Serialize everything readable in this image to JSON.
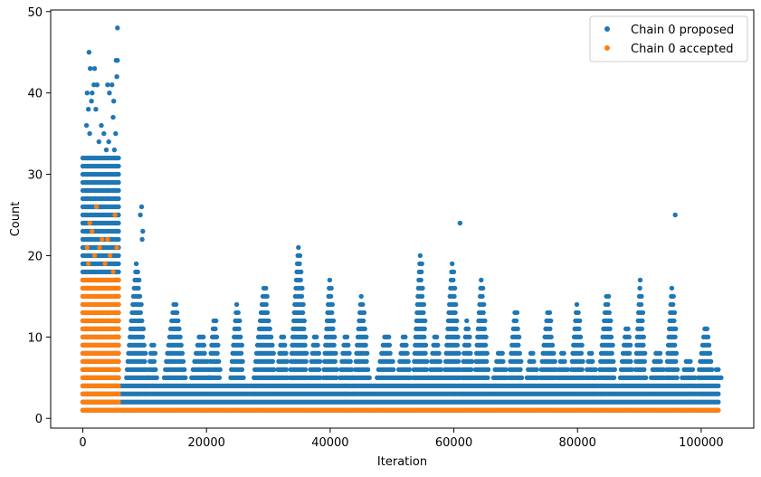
{
  "chart_data": {
    "type": "scatter",
    "xlabel": "Iteration",
    "ylabel": "Count",
    "xlim": [
      -5200,
      108500
    ],
    "ylim": [
      -1.2,
      50.2
    ],
    "xticks": [
      0,
      20000,
      40000,
      60000,
      80000,
      100000
    ],
    "xtick_labels": [
      "0",
      "20000",
      "40000",
      "60000",
      "80000",
      "100000"
    ],
    "yticks": [
      0,
      10,
      20,
      30,
      40,
      50
    ],
    "ytick_labels": [
      "0",
      "10",
      "20",
      "30",
      "40",
      "50"
    ],
    "grid": false,
    "legend_position": "top-right",
    "series": [
      {
        "name": "Chain 0 proposed",
        "color": "#1f77b4",
        "burnin": {
          "x_range": [
            0,
            6000
          ],
          "y_max": 32
        },
        "bands": [
          {
            "y": 1,
            "x_range": [
              6200,
              103000
            ]
          },
          {
            "y": 2,
            "x_range": [
              6200,
              103000
            ]
          },
          {
            "y": 3,
            "x_range": [
              6200,
              103000
            ]
          },
          {
            "y": 4,
            "x_range": [
              6200,
              103000
            ]
          }
        ],
        "clusters": [
          {
            "x_range": [
              6400,
              10300
            ],
            "y_max": 19
          },
          {
            "x_range": [
              10300,
              12000
            ],
            "y_max": 9
          },
          {
            "x_range": [
              12500,
              16500
            ],
            "y_max": 14
          },
          {
            "x_range": [
              17000,
              20500
            ],
            "y_max": 10
          },
          {
            "x_range": [
              20000,
              22200
            ],
            "y_max": 12
          },
          {
            "x_range": [
              23500,
              26000
            ],
            "y_max": 14
          },
          {
            "x_range": [
              27000,
              31000
            ],
            "y_max": 16
          },
          {
            "x_range": [
              31000,
              33200
            ],
            "y_max": 10
          },
          {
            "x_range": [
              33000,
              36200
            ],
            "y_max": 21
          },
          {
            "x_range": [
              36300,
              38500
            ],
            "y_max": 10
          },
          {
            "x_range": [
              38500,
              41000
            ],
            "y_max": 17
          },
          {
            "x_range": [
              41200,
              43500
            ],
            "y_max": 10
          },
          {
            "x_range": [
              43500,
              46200
            ],
            "y_max": 15
          },
          {
            "x_range": [
              47000,
              50500
            ],
            "y_max": 10
          },
          {
            "x_range": [
              50500,
              53000
            ],
            "y_max": 10
          },
          {
            "x_range": [
              53000,
              55700
            ],
            "y_max": 20
          },
          {
            "x_range": [
              55700,
              58000
            ],
            "y_max": 10
          },
          {
            "x_range": [
              58000,
              61000
            ],
            "y_max": 19
          },
          {
            "x_range": [
              61000,
              63000
            ],
            "y_max": 12
          },
          {
            "x_range": [
              63000,
              65500
            ],
            "y_max": 17
          },
          {
            "x_range": [
              66000,
              68500
            ],
            "y_max": 8
          },
          {
            "x_range": [
              68500,
              71000
            ],
            "y_max": 13
          },
          {
            "x_range": [
              71500,
              73500
            ],
            "y_max": 8
          },
          {
            "x_range": [
              73500,
              76500
            ],
            "y_max": 13
          },
          {
            "x_range": [
              76500,
              78500
            ],
            "y_max": 8
          },
          {
            "x_range": [
              78500,
              81000
            ],
            "y_max": 14
          },
          {
            "x_range": [
              81000,
              83000
            ],
            "y_max": 8
          },
          {
            "x_range": [
              83000,
              86000
            ],
            "y_max": 15
          },
          {
            "x_range": [
              86500,
              89000
            ],
            "y_max": 11
          },
          {
            "x_range": [
              89000,
              91000
            ],
            "y_max": 17
          },
          {
            "x_range": [
              91500,
              94000
            ],
            "y_max": 8
          },
          {
            "x_range": [
              94000,
              96200
            ],
            "y_max": 16
          },
          {
            "x_range": [
              96500,
              99000
            ],
            "y_max": 7
          },
          {
            "x_range": [
              99000,
              102000
            ],
            "y_max": 11
          },
          {
            "x_range": [
              102000,
              103200
            ],
            "y_max": 6
          }
        ],
        "outliers": [
          {
            "x": 1000,
            "y": 45
          },
          {
            "x": 1200,
            "y": 43
          },
          {
            "x": 1900,
            "y": 43
          },
          {
            "x": 1800,
            "y": 41
          },
          {
            "x": 2300,
            "y": 41
          },
          {
            "x": 700,
            "y": 40
          },
          {
            "x": 1500,
            "y": 40
          },
          {
            "x": 1400,
            "y": 39
          },
          {
            "x": 4000,
            "y": 41
          },
          {
            "x": 4700,
            "y": 41
          },
          {
            "x": 4300,
            "y": 40
          },
          {
            "x": 5000,
            "y": 39
          },
          {
            "x": 5400,
            "y": 44
          },
          {
            "x": 5600,
            "y": 44
          },
          {
            "x": 5600,
            "y": 48
          },
          {
            "x": 5500,
            "y": 42
          },
          {
            "x": 900,
            "y": 38
          },
          {
            "x": 2100,
            "y": 38
          },
          {
            "x": 3000,
            "y": 36
          },
          {
            "x": 3400,
            "y": 35
          },
          {
            "x": 2600,
            "y": 34
          },
          {
            "x": 4900,
            "y": 37
          },
          {
            "x": 5300,
            "y": 35
          },
          {
            "x": 600,
            "y": 36
          },
          {
            "x": 1100,
            "y": 35
          },
          {
            "x": 3800,
            "y": 33
          },
          {
            "x": 4200,
            "y": 34
          },
          {
            "x": 5100,
            "y": 33
          },
          {
            "x": 9500,
            "y": 26
          },
          {
            "x": 9300,
            "y": 25
          },
          {
            "x": 9700,
            "y": 23
          },
          {
            "x": 9600,
            "y": 22
          },
          {
            "x": 61000,
            "y": 24
          },
          {
            "x": 95800,
            "y": 25
          }
        ]
      },
      {
        "name": "Chain 0 accepted",
        "color": "#ff7f0e",
        "burnin": {
          "x_range": [
            0,
            6000
          ],
          "y_max": 17
        },
        "band": {
          "y": 1,
          "x_range": [
            6200,
            103000
          ]
        },
        "outliers": [
          {
            "x": 1100,
            "y": 24
          },
          {
            "x": 2200,
            "y": 26
          },
          {
            "x": 1500,
            "y": 23
          },
          {
            "x": 3100,
            "y": 22
          },
          {
            "x": 2700,
            "y": 21
          },
          {
            "x": 4400,
            "y": 20
          },
          {
            "x": 1900,
            "y": 20
          },
          {
            "x": 3600,
            "y": 19
          },
          {
            "x": 900,
            "y": 19
          },
          {
            "x": 5200,
            "y": 25
          },
          {
            "x": 5500,
            "y": 21
          },
          {
            "x": 4900,
            "y": 18
          },
          {
            "x": 700,
            "y": 21
          },
          {
            "x": 4000,
            "y": 22
          }
        ]
      }
    ]
  }
}
